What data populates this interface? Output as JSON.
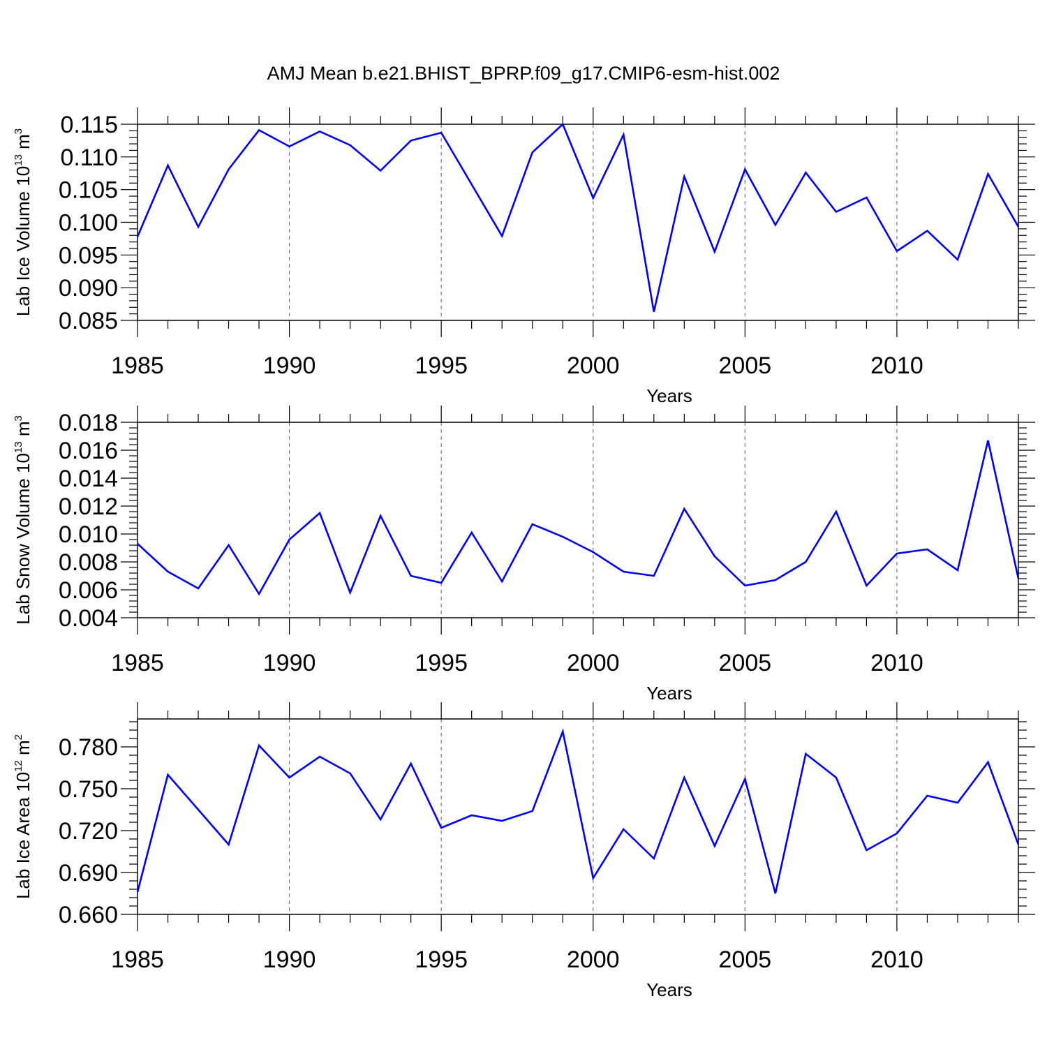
{
  "title": "AMJ Mean b.e21.BHIST_BPRP.f09_g17.CMIP6-esm-hist.002",
  "colors": {
    "line": "#0000ff",
    "axis": "#000000",
    "grid": "#777777"
  },
  "chart_data": [
    {
      "type": "line",
      "ylabel": {
        "text": "Lab Ice Volume 10",
        "exponent": "13",
        "unit": " m",
        "unit_exponent": "3"
      },
      "xlabel": "Years",
      "x_ticks": [
        "1985",
        "1990",
        "1995",
        "2000",
        "2005",
        "2010"
      ],
      "y_ticks": [
        "0.085",
        "0.090",
        "0.095",
        "0.100",
        "0.105",
        "0.110",
        "0.115"
      ],
      "xlim": [
        1985,
        2014
      ],
      "ylim": [
        0.085,
        0.115
      ],
      "grid": "vertical dashed at major x ticks",
      "series": [
        {
          "x": [
            1985,
            1986,
            1987,
            1988,
            1989,
            1990,
            1991,
            1992,
            1993,
            1994,
            1995,
            1996,
            1997,
            1998,
            1999,
            2000,
            2001,
            2002,
            2003,
            2004,
            2005,
            2006,
            2007,
            2008,
            2009,
            2010,
            2011,
            2012,
            2013,
            2014
          ],
          "values": [
            0.0978,
            0.1087,
            0.0993,
            0.1081,
            0.1141,
            0.1116,
            0.1139,
            0.1118,
            0.1079,
            0.1125,
            0.1137,
            0.1058,
            0.0979,
            0.1107,
            0.115,
            0.1037,
            0.1134,
            0.0863,
            0.107,
            0.0955,
            0.1081,
            0.0996,
            0.1076,
            0.1016,
            0.1038,
            0.0956,
            0.0987,
            0.0943,
            0.1074,
            0.0993
          ]
        }
      ]
    },
    {
      "type": "line",
      "ylabel": {
        "text": "Lab Snow Volume 10",
        "exponent": "13",
        "unit": " m",
        "unit_exponent": "3"
      },
      "xlabel": "Years",
      "x_ticks": [
        "1985",
        "1990",
        "1995",
        "2000",
        "2005",
        "2010"
      ],
      "y_ticks": [
        "0.004",
        "0.006",
        "0.008",
        "0.010",
        "0.012",
        "0.014",
        "0.016",
        "0.018"
      ],
      "xlim": [
        1985,
        2014
      ],
      "ylim": [
        0.004,
        0.018
      ],
      "grid": "vertical dashed at major x ticks",
      "series": [
        {
          "x": [
            1985,
            1986,
            1987,
            1988,
            1989,
            1990,
            1991,
            1992,
            1993,
            1994,
            1995,
            1996,
            1997,
            1998,
            1999,
            2000,
            2001,
            2002,
            2003,
            2004,
            2005,
            2006,
            2007,
            2008,
            2009,
            2010,
            2011,
            2012,
            2013,
            2014
          ],
          "values": [
            0.0093,
            0.0073,
            0.0061,
            0.0092,
            0.0057,
            0.0096,
            0.0115,
            0.0058,
            0.0113,
            0.007,
            0.0065,
            0.0101,
            0.0066,
            0.0107,
            0.0098,
            0.0087,
            0.0073,
            0.007,
            0.0118,
            0.0084,
            0.0063,
            0.0067,
            0.008,
            0.0116,
            0.0063,
            0.0086,
            0.0089,
            0.0074,
            0.0167,
            0.0068
          ]
        }
      ]
    },
    {
      "type": "line",
      "ylabel": {
        "text": "Lab Ice Area 10",
        "exponent": "12",
        "unit": " m",
        "unit_exponent": "2"
      },
      "xlabel": "Years",
      "x_ticks": [
        "1985",
        "1990",
        "1995",
        "2000",
        "2005",
        "2010"
      ],
      "y_ticks": [
        "0.660",
        "0.690",
        "0.720",
        "0.750",
        "0.780"
      ],
      "xlim": [
        1985,
        2014
      ],
      "ylim": [
        0.66,
        0.8
      ],
      "grid": "vertical dashed at major x ticks",
      "series": [
        {
          "x": [
            1985,
            1986,
            1987,
            1988,
            1989,
            1990,
            1991,
            1992,
            1993,
            1994,
            1995,
            1996,
            1997,
            1998,
            1999,
            2000,
            2001,
            2002,
            2003,
            2004,
            2005,
            2006,
            2007,
            2008,
            2009,
            2010,
            2011,
            2012,
            2013,
            2014
          ],
          "values": [
            0.676,
            0.76,
            0.735,
            0.71,
            0.781,
            0.758,
            0.773,
            0.761,
            0.728,
            0.768,
            0.722,
            0.731,
            0.727,
            0.734,
            0.791,
            0.686,
            0.721,
            0.7,
            0.758,
            0.709,
            0.757,
            0.675,
            0.775,
            0.758,
            0.706,
            0.718,
            0.745,
            0.74,
            0.769,
            0.71
          ]
        }
      ]
    }
  ]
}
